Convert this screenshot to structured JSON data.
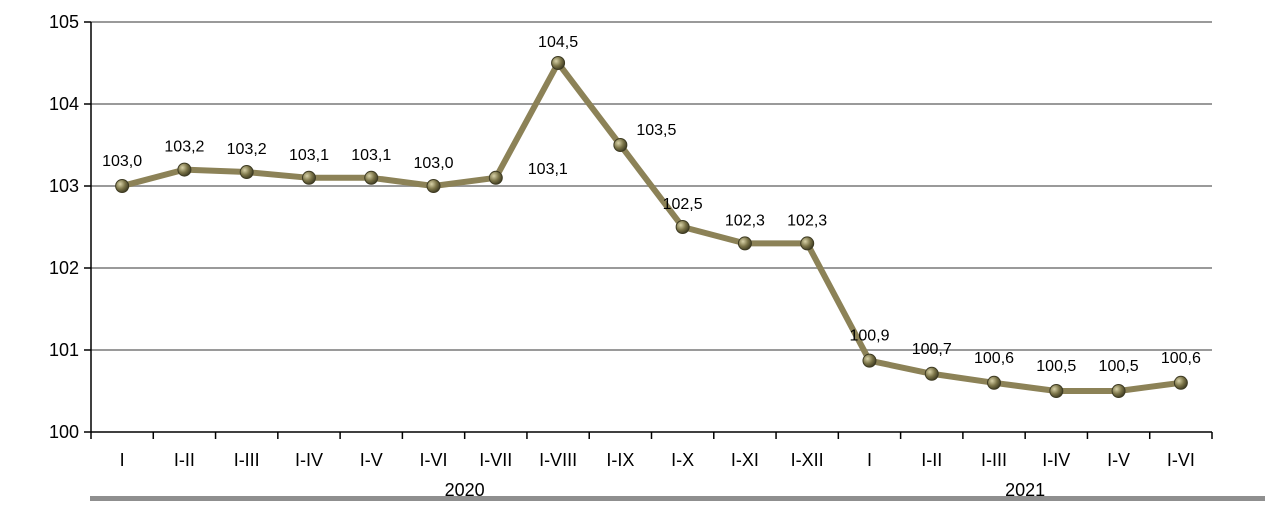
{
  "chart_data": {
    "type": "line",
    "categories": [
      "I",
      "I-II",
      "I-III",
      "I-IV",
      "I-V",
      "I-VI",
      "I-VII",
      "I-VIII",
      "I-IX",
      "I-X",
      "I-XI",
      "I-XII",
      "I",
      "I-II",
      "I-III",
      "I-IV",
      "I-V",
      "I-VI"
    ],
    "values": [
      103.0,
      103.2,
      103.17,
      103.1,
      103.1,
      103.0,
      103.1,
      104.5,
      103.5,
      102.5,
      102.3,
      102.3,
      100.87,
      100.71,
      100.6,
      100.5,
      100.5,
      100.6
    ],
    "data_labels": [
      "103,0",
      "103,2",
      "103,2",
      "103,1",
      "103,1",
      "103,0",
      "103,1",
      "104,5",
      "103,5",
      "102,5",
      "102,3",
      "102,3",
      "100,9",
      "100,7",
      "100,6",
      "100,5",
      "100,5",
      "100,6"
    ],
    "year_groups": [
      {
        "label": "2020",
        "from": 0,
        "to": 11
      },
      {
        "label": "2021",
        "from": 12,
        "to": 17
      }
    ],
    "ylim": [
      100,
      105
    ],
    "yticks": [
      "100",
      "101",
      "102",
      "103",
      "104",
      "105"
    ],
    "grid": true,
    "line_color": "#8c8257",
    "marker_color": "#6f6a40",
    "grid_color": "#9a9a9a",
    "xlabel": "",
    "ylabel": "",
    "title": ""
  }
}
